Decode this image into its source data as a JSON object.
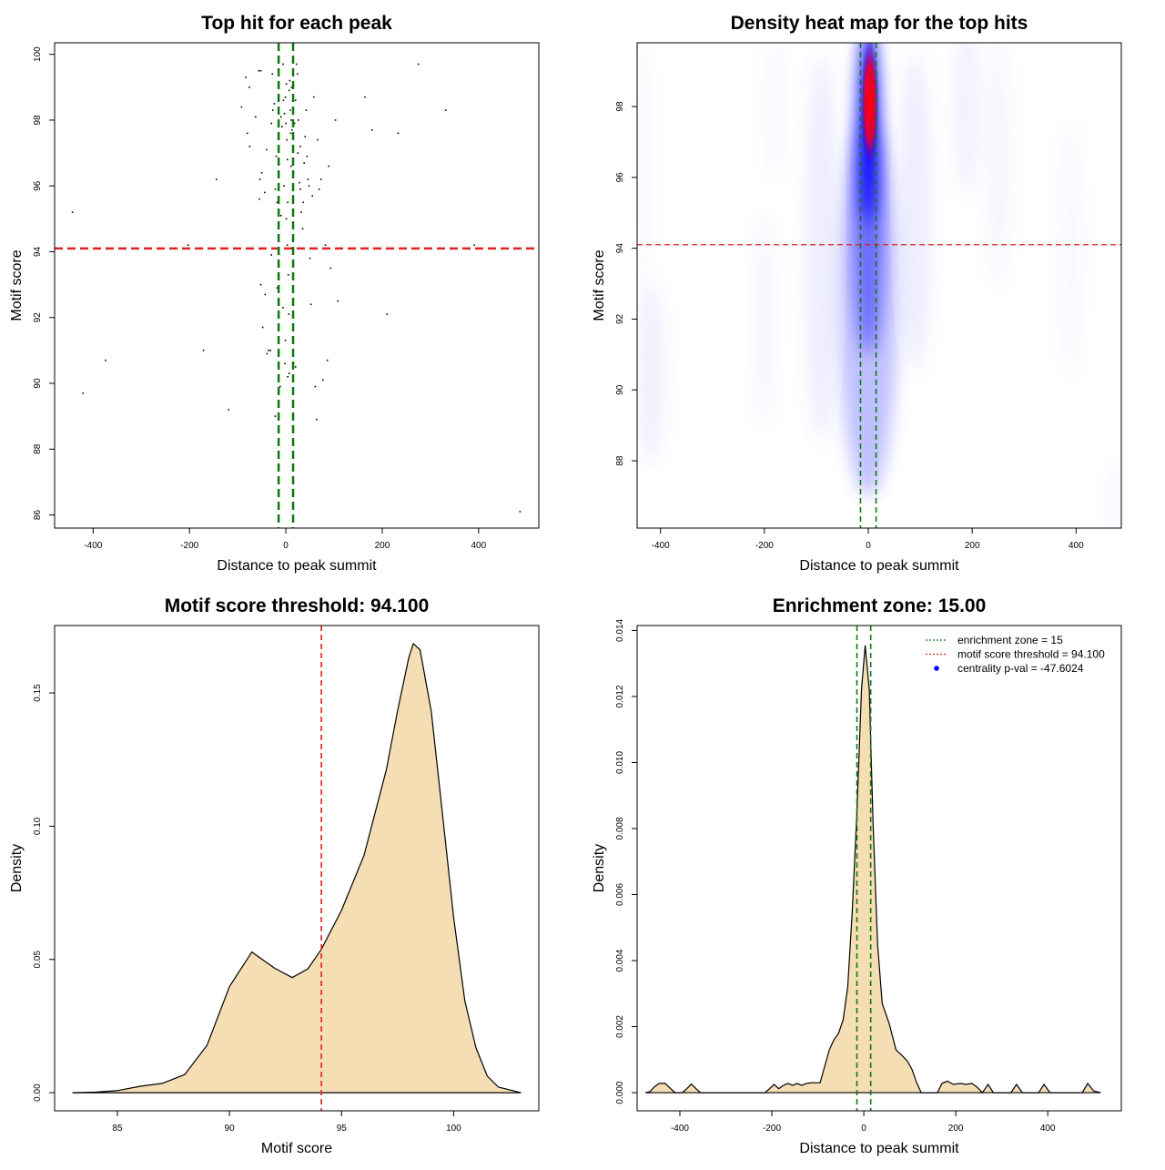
{
  "charts": [
    {
      "id": "scatter",
      "title": "Top hit for each peak",
      "xlabel": "Distance to peak summit",
      "ylabel": "Motif score",
      "xlim": [
        -480,
        525
      ],
      "ylim": [
        85.6,
        100.35
      ],
      "xticks": [
        -400,
        -200,
        0,
        200,
        400
      ],
      "yticks": [
        86,
        88,
        90,
        92,
        94,
        96,
        98,
        100
      ],
      "hline": 94.1,
      "vlines": [
        -15,
        15
      ],
      "hline_color": "#dd2222",
      "vline_color": "#117711",
      "points": [
        [
          -443,
          95.2
        ],
        [
          -421,
          89.7
        ],
        [
          -374,
          90.7
        ],
        [
          -203,
          94.2
        ],
        [
          -171,
          91.0
        ],
        [
          -144,
          96.2
        ],
        [
          -119,
          89.2
        ],
        [
          -92,
          98.4
        ],
        [
          -83,
          99.3
        ],
        [
          -80,
          97.6
        ],
        [
          -76,
          99.0
        ],
        [
          -75,
          97.2
        ],
        [
          -63,
          98.1
        ],
        [
          -56,
          99.5
        ],
        [
          -52,
          99.5
        ],
        [
          -55,
          95.6
        ],
        [
          -50,
          96.4
        ],
        [
          -54,
          96.2
        ],
        [
          -44,
          95.8
        ],
        [
          -48,
          91.7
        ],
        [
          -43,
          92.7
        ],
        [
          -39,
          90.9
        ],
        [
          -36,
          91.0
        ],
        [
          -32,
          91.0
        ],
        [
          -30,
          97.9
        ],
        [
          -28,
          99.4
        ],
        [
          -27,
          98.3
        ],
        [
          -24,
          98.5
        ],
        [
          -22,
          95.9
        ],
        [
          -20,
          96.9
        ],
        [
          -18,
          95.5
        ],
        [
          -16,
          94.7
        ],
        [
          -14,
          93.6
        ],
        [
          -12,
          89.9
        ],
        [
          -10,
          98.1
        ],
        [
          -8,
          97.8
        ],
        [
          -6,
          99.7
        ],
        [
          -5,
          98.6
        ],
        [
          -3,
          98.2
        ],
        [
          -1,
          98.7
        ],
        [
          0,
          97.9
        ],
        [
          1,
          99.1
        ],
        [
          2,
          97.4
        ],
        [
          3,
          96.8
        ],
        [
          4,
          95.5
        ],
        [
          5,
          93.3
        ],
        [
          6,
          92.1
        ],
        [
          -2,
          90.6
        ],
        [
          4,
          90.2
        ],
        [
          -1,
          91.3
        ],
        [
          3,
          94.2
        ],
        [
          7,
          98.9
        ],
        [
          9,
          98.3
        ],
        [
          10,
          97.6
        ],
        [
          11,
          98.0
        ],
        [
          12,
          99.0
        ],
        [
          13,
          97.7
        ],
        [
          15,
          95.7
        ],
        [
          16,
          96.4
        ],
        [
          14,
          91.4
        ],
        [
          16,
          93.6
        ],
        [
          18,
          97.9
        ],
        [
          20,
          98.6
        ],
        [
          22,
          99.7
        ],
        [
          24,
          99.4
        ],
        [
          26,
          98.0
        ],
        [
          28,
          96.1
        ],
        [
          30,
          95.9
        ],
        [
          32,
          95.2
        ],
        [
          35,
          94.7
        ],
        [
          38,
          96.7
        ],
        [
          40,
          97.5
        ],
        [
          42,
          98.3
        ],
        [
          44,
          96.9
        ],
        [
          46,
          96.2
        ],
        [
          48,
          96.0
        ],
        [
          50,
          93.8
        ],
        [
          52,
          92.4
        ],
        [
          55,
          95.7
        ],
        [
          58,
          98.7
        ],
        [
          61,
          89.9
        ],
        [
          64,
          88.9
        ],
        [
          66,
          97.4
        ],
        [
          69,
          95.9
        ],
        [
          73,
          96.2
        ],
        [
          77,
          90.1
        ],
        [
          82,
          94.2
        ],
        [
          86,
          90.7
        ],
        [
          89,
          96.6
        ],
        [
          93,
          93.5
        ],
        [
          103,
          98.0
        ],
        [
          108,
          92.5
        ],
        [
          164,
          98.7
        ],
        [
          179,
          97.7
        ],
        [
          210,
          92.1
        ],
        [
          233,
          97.6
        ],
        [
          275,
          99.7
        ],
        [
          332,
          98.3
        ],
        [
          391,
          94.2
        ],
        [
          486,
          86.1
        ],
        [
          -52,
          93.0
        ],
        [
          -40,
          97.1
        ],
        [
          -22,
          89.0
        ],
        [
          -6,
          92.3
        ],
        [
          7,
          90.3
        ],
        [
          -10,
          95.1
        ],
        [
          30,
          97.2
        ],
        [
          36,
          95.5
        ],
        [
          -30,
          93.9
        ],
        [
          20,
          90.5
        ],
        [
          -4,
          96.0
        ],
        [
          11,
          96.6
        ],
        [
          1,
          95.0
        ],
        [
          -18,
          92.9
        ],
        [
          8,
          99.2
        ],
        [
          25,
          97.0
        ]
      ]
    },
    {
      "id": "heatmap",
      "title": "Density heat map for the top hits",
      "xlabel": "Distance to peak summit",
      "ylabel": "Motif score",
      "xlim": [
        -445,
        487
      ],
      "ylim": [
        86.1,
        99.8
      ],
      "xticks": [
        -400,
        -200,
        0,
        200,
        400
      ],
      "yticks": [
        88,
        90,
        92,
        94,
        96,
        98
      ],
      "hline": 94.1,
      "vlines": [
        -15,
        15
      ],
      "hline_color": "#dd2222",
      "vline_color": "#117711",
      "colors": [
        "#ffffff",
        "#0000ff",
        "#ff0000"
      ]
    },
    {
      "id": "score-density",
      "title": "Motif score threshold: 94.100",
      "xlabel": "Motif score",
      "ylabel": "Density",
      "xlim": [
        82.2,
        103.8
      ],
      "ylim": [
        -0.0068,
        0.1753
      ],
      "xticks": [
        85,
        90,
        95,
        100
      ],
      "yticks": [
        0.0,
        0.05,
        0.1,
        0.15
      ],
      "ytick_labels": [
        "0.00",
        "0.05",
        "0.10",
        "0.15"
      ],
      "vline": 94.1,
      "vline_color": "#dd2222",
      "fill_color": "#f5deb3",
      "curve": [
        [
          83.0,
          0.0
        ],
        [
          84.0,
          0.0002
        ],
        [
          85.0,
          0.0008
        ],
        [
          86.0,
          0.0024
        ],
        [
          87.0,
          0.0035
        ],
        [
          88.0,
          0.0068
        ],
        [
          89.0,
          0.0178
        ],
        [
          90.0,
          0.0398
        ],
        [
          91.0,
          0.0528
        ],
        [
          92.0,
          0.0468
        ],
        [
          92.8,
          0.0432
        ],
        [
          93.5,
          0.0465
        ],
        [
          94.1,
          0.0538
        ],
        [
          95.0,
          0.0685
        ],
        [
          96.0,
          0.089
        ],
        [
          97.0,
          0.1212
        ],
        [
          97.5,
          0.1433
        ],
        [
          98.0,
          0.1632
        ],
        [
          98.2,
          0.1685
        ],
        [
          98.5,
          0.1662
        ],
        [
          99.0,
          0.1432
        ],
        [
          99.5,
          0.1048
        ],
        [
          100.0,
          0.0658
        ],
        [
          100.5,
          0.0345
        ],
        [
          101.0,
          0.0168
        ],
        [
          101.5,
          0.0062
        ],
        [
          102.0,
          0.0021
        ],
        [
          103.0,
          0.0
        ]
      ]
    },
    {
      "id": "distance-density",
      "title": "Enrichment zone: 15.00",
      "xlabel": "Distance to peak summit",
      "ylabel": "Density",
      "xlim": [
        -493,
        560
      ],
      "ylim": [
        -0.00055,
        0.01415
      ],
      "xticks": [
        -400,
        -200,
        0,
        200,
        400
      ],
      "yticks": [
        0.0,
        0.002,
        0.004,
        0.006,
        0.008,
        0.01,
        0.012,
        0.014
      ],
      "ytick_labels": [
        "0.000",
        "0.002",
        "0.004",
        "0.006",
        "0.008",
        "0.010",
        "0.012",
        "0.014"
      ],
      "vlines": [
        -15,
        15
      ],
      "vline_color": "#117711",
      "fill_color": "#f5deb3",
      "legend": [
        {
          "label": "enrichment zone = 15",
          "color": "#117711",
          "kind": "dotted"
        },
        {
          "label": "motif score threshold = 94.100",
          "color": "#dd2222",
          "kind": "dotted"
        },
        {
          "label": "centrality p-val = -47.6024",
          "color": "#0000ff",
          "kind": "point"
        }
      ],
      "curve": [
        [
          -475,
          0.0
        ],
        [
          -465,
          3e-05
        ],
        [
          -455,
          0.00018
        ],
        [
          -445,
          0.00028
        ],
        [
          -432,
          0.00028
        ],
        [
          -420,
          0.00012
        ],
        [
          -410,
          0.0
        ],
        [
          -395,
          0.0
        ],
        [
          -385,
          0.00012
        ],
        [
          -375,
          0.00026
        ],
        [
          -365,
          0.00012
        ],
        [
          -355,
          0.0
        ],
        [
          -215,
          0.0
        ],
        [
          -205,
          0.00012
        ],
        [
          -195,
          0.00025
        ],
        [
          -185,
          0.00012
        ],
        [
          -175,
          0.00022
        ],
        [
          -165,
          0.00028
        ],
        [
          -155,
          0.00022
        ],
        [
          -145,
          0.00028
        ],
        [
          -135,
          0.00022
        ],
        [
          -125,
          0.00028
        ],
        [
          -115,
          0.0003
        ],
        [
          -105,
          0.0003
        ],
        [
          -95,
          0.0003
        ],
        [
          -85,
          0.0008
        ],
        [
          -75,
          0.0013
        ],
        [
          -65,
          0.0016
        ],
        [
          -55,
          0.0018
        ],
        [
          -45,
          0.0022
        ],
        [
          -35,
          0.0032
        ],
        [
          -25,
          0.0055
        ],
        [
          -15,
          0.0085
        ],
        [
          -5,
          0.0122
        ],
        [
          3,
          0.01355
        ],
        [
          12,
          0.0122
        ],
        [
          20,
          0.0082
        ],
        [
          30,
          0.0045
        ],
        [
          40,
          0.0027
        ],
        [
          55,
          0.0021
        ],
        [
          70,
          0.0013
        ],
        [
          85,
          0.0011
        ],
        [
          95,
          0.00095
        ],
        [
          105,
          0.0007
        ],
        [
          115,
          0.0003
        ],
        [
          125,
          0.0
        ],
        [
          160,
          0.0
        ],
        [
          170,
          0.00028
        ],
        [
          182,
          0.00035
        ],
        [
          195,
          0.00025
        ],
        [
          210,
          0.00028
        ],
        [
          222,
          0.00025
        ],
        [
          235,
          0.00028
        ],
        [
          245,
          0.00018
        ],
        [
          258,
          0.0
        ],
        [
          270,
          0.00025
        ],
        [
          282,
          0.0
        ],
        [
          320,
          0.0
        ],
        [
          332,
          0.00025
        ],
        [
          345,
          0.0
        ],
        [
          380,
          0.0
        ],
        [
          392,
          0.00025
        ],
        [
          405,
          0.0
        ],
        [
          475,
          0.0
        ],
        [
          487,
          0.00028
        ],
        [
          500,
          5e-05
        ],
        [
          515,
          0.0
        ]
      ]
    }
  ]
}
